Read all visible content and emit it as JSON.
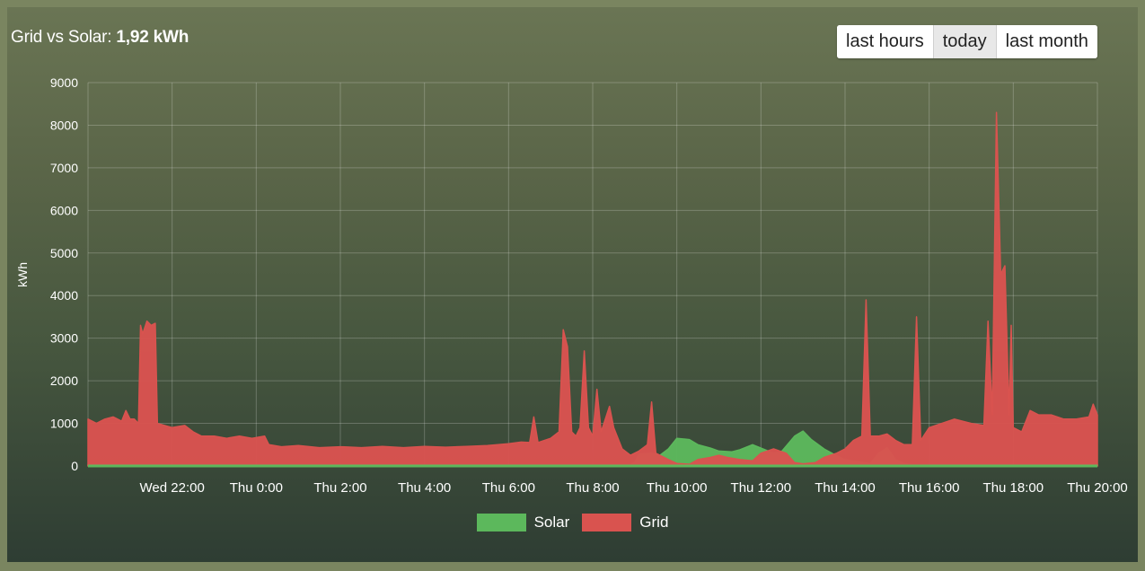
{
  "header": {
    "title_prefix": "Grid vs Solar:",
    "title_value": "1,92 kWh"
  },
  "range_buttons": [
    {
      "label": "last hours",
      "active": false
    },
    {
      "label": "today",
      "active": true
    },
    {
      "label": "last month",
      "active": false
    }
  ],
  "chart_data": {
    "type": "area",
    "title": "Grid vs Solar: 1,92 kWh",
    "ylabel": "kWh",
    "xlabel": "",
    "x_unit": "hours (Wed 20:00 = 0, Thu 20:00 = 24)",
    "xlim": [
      0,
      24
    ],
    "ylim": [
      0,
      9000
    ],
    "y_ticks": [
      0,
      1000,
      2000,
      3000,
      4000,
      5000,
      6000,
      7000,
      8000,
      9000
    ],
    "x_ticks": [
      {
        "x": 2,
        "label": "Wed 22:00"
      },
      {
        "x": 4,
        "label": "Thu 0:00"
      },
      {
        "x": 6,
        "label": "Thu 2:00"
      },
      {
        "x": 8,
        "label": "Thu 4:00"
      },
      {
        "x": 10,
        "label": "Thu 6:00"
      },
      {
        "x": 12,
        "label": "Thu 8:00"
      },
      {
        "x": 14,
        "label": "Thu 10:00"
      },
      {
        "x": 16,
        "label": "Thu 12:00"
      },
      {
        "x": 18,
        "label": "Thu 14:00"
      },
      {
        "x": 20,
        "label": "Thu 16:00"
      },
      {
        "x": 22,
        "label": "Thu 18:00"
      },
      {
        "x": 24,
        "label": "Thu 20:00"
      }
    ],
    "grid": true,
    "legend_position": "bottom",
    "series": [
      {
        "name": "Solar",
        "color": "#5cb85c",
        "points": [
          [
            0,
            30
          ],
          [
            12.9,
            30
          ],
          [
            13.0,
            80
          ],
          [
            13.1,
            280
          ],
          [
            13.4,
            300
          ],
          [
            13.6,
            250
          ],
          [
            13.8,
            400
          ],
          [
            14.0,
            650
          ],
          [
            14.3,
            620
          ],
          [
            14.5,
            500
          ],
          [
            14.8,
            420
          ],
          [
            15.0,
            350
          ],
          [
            15.3,
            330
          ],
          [
            15.5,
            380
          ],
          [
            15.8,
            500
          ],
          [
            16.0,
            420
          ],
          [
            16.3,
            300
          ],
          [
            16.5,
            350
          ],
          [
            16.8,
            700
          ],
          [
            17.0,
            820
          ],
          [
            17.2,
            620
          ],
          [
            17.5,
            400
          ],
          [
            17.8,
            240
          ],
          [
            18.0,
            150
          ],
          [
            18.3,
            100
          ],
          [
            18.6,
            60
          ],
          [
            18.8,
            300
          ],
          [
            19.0,
            430
          ],
          [
            19.2,
            150
          ],
          [
            19.4,
            60
          ],
          [
            19.6,
            30
          ],
          [
            24,
            30
          ]
        ]
      },
      {
        "name": "Grid",
        "color": "#d9534f",
        "points": [
          [
            0,
            1100
          ],
          [
            0.2,
            1000
          ],
          [
            0.4,
            1100
          ],
          [
            0.6,
            1150
          ],
          [
            0.8,
            1050
          ],
          [
            0.9,
            1300
          ],
          [
            1.0,
            1100
          ],
          [
            1.1,
            1100
          ],
          [
            1.2,
            1000
          ],
          [
            1.25,
            3300
          ],
          [
            1.3,
            3100
          ],
          [
            1.4,
            3400
          ],
          [
            1.5,
            3300
          ],
          [
            1.6,
            3350
          ],
          [
            1.65,
            1000
          ],
          [
            2.0,
            900
          ],
          [
            2.3,
            950
          ],
          [
            2.5,
            800
          ],
          [
            2.7,
            700
          ],
          [
            3.0,
            700
          ],
          [
            3.3,
            650
          ],
          [
            3.6,
            700
          ],
          [
            3.9,
            650
          ],
          [
            4.2,
            700
          ],
          [
            4.3,
            500
          ],
          [
            4.6,
            450
          ],
          [
            5.0,
            480
          ],
          [
            5.5,
            430
          ],
          [
            6.0,
            450
          ],
          [
            6.5,
            430
          ],
          [
            7.0,
            460
          ],
          [
            7.5,
            430
          ],
          [
            8.0,
            460
          ],
          [
            8.5,
            440
          ],
          [
            9.0,
            460
          ],
          [
            9.5,
            480
          ],
          [
            10.0,
            520
          ],
          [
            10.3,
            560
          ],
          [
            10.5,
            550
          ],
          [
            10.6,
            1150
          ],
          [
            10.7,
            550
          ],
          [
            11.0,
            650
          ],
          [
            11.2,
            800
          ],
          [
            11.3,
            3200
          ],
          [
            11.4,
            2800
          ],
          [
            11.5,
            800
          ],
          [
            11.6,
            700
          ],
          [
            11.7,
            900
          ],
          [
            11.8,
            2700
          ],
          [
            11.9,
            900
          ],
          [
            12.0,
            700
          ],
          [
            12.1,
            1800
          ],
          [
            12.2,
            800
          ],
          [
            12.4,
            1400
          ],
          [
            12.5,
            900
          ],
          [
            12.7,
            400
          ],
          [
            12.9,
            250
          ],
          [
            13.1,
            350
          ],
          [
            13.3,
            500
          ],
          [
            13.4,
            1500
          ],
          [
            13.5,
            300
          ],
          [
            13.8,
            150
          ],
          [
            14.0,
            60
          ],
          [
            14.3,
            40
          ],
          [
            14.5,
            150
          ],
          [
            14.8,
            200
          ],
          [
            15.0,
            250
          ],
          [
            15.2,
            200
          ],
          [
            15.5,
            150
          ],
          [
            15.8,
            120
          ],
          [
            16.0,
            300
          ],
          [
            16.3,
            400
          ],
          [
            16.6,
            300
          ],
          [
            16.8,
            80
          ],
          [
            17.0,
            50
          ],
          [
            17.3,
            80
          ],
          [
            17.5,
            200
          ],
          [
            17.8,
            300
          ],
          [
            18.0,
            400
          ],
          [
            18.2,
            600
          ],
          [
            18.4,
            700
          ],
          [
            18.5,
            3900
          ],
          [
            18.6,
            700
          ],
          [
            18.8,
            700
          ],
          [
            19.0,
            750
          ],
          [
            19.2,
            600
          ],
          [
            19.4,
            500
          ],
          [
            19.6,
            500
          ],
          [
            19.7,
            3500
          ],
          [
            19.8,
            600
          ],
          [
            20.0,
            900
          ],
          [
            20.3,
            1000
          ],
          [
            20.6,
            1100
          ],
          [
            21.0,
            1000
          ],
          [
            21.3,
            950
          ],
          [
            21.4,
            3400
          ],
          [
            21.5,
            1200
          ],
          [
            21.6,
            8300
          ],
          [
            21.7,
            4500
          ],
          [
            21.8,
            4700
          ],
          [
            21.9,
            1200
          ],
          [
            21.95,
            3300
          ],
          [
            22.0,
            900
          ],
          [
            22.2,
            800
          ],
          [
            22.4,
            1300
          ],
          [
            22.6,
            1200
          ],
          [
            22.9,
            1200
          ],
          [
            23.2,
            1100
          ],
          [
            23.5,
            1100
          ],
          [
            23.8,
            1150
          ],
          [
            23.9,
            1450
          ],
          [
            24.0,
            1200
          ]
        ]
      }
    ]
  }
}
